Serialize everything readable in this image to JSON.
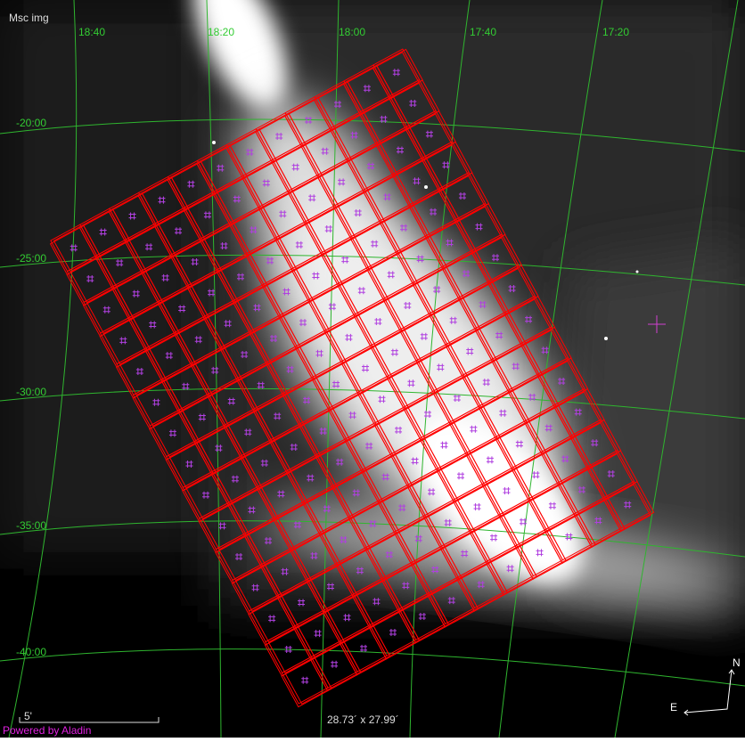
{
  "survey": "Msc img",
  "ra_labels": [
    "18:40",
    "18:20",
    "18:00",
    "17:40",
    "17:20"
  ],
  "dec_labels": [
    "-20:00",
    "-25:00",
    "-30:00",
    "-35:00",
    "-40:00"
  ],
  "scale": "5'",
  "credit": "Powered by Aladin",
  "field_size": "28.73´ x 27.99´",
  "compass": {
    "north": "N",
    "east": "E"
  }
}
